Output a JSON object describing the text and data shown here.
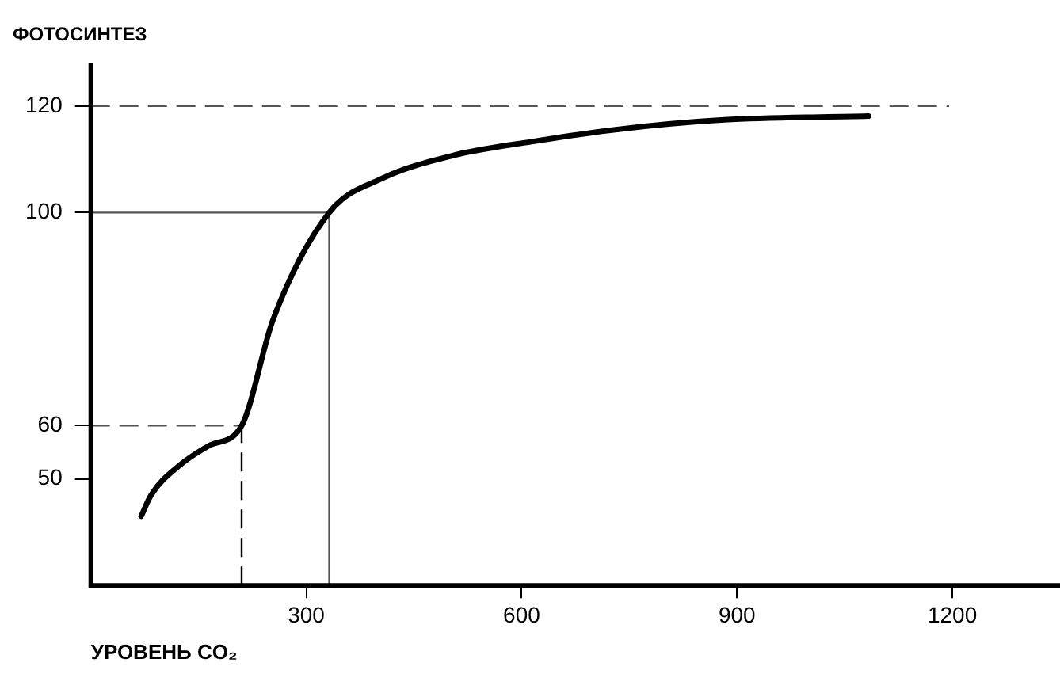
{
  "chart_data": {
    "type": "line",
    "ylabel": "ФОТОСИНТЕЗ",
    "xlabel": "УРОВЕНЬ CO₂",
    "series": [
      {
        "color": "#000000",
        "x": [
          70,
          84,
          124,
          164,
          210,
          254,
          332,
          404,
          504,
          614,
          733,
          882,
          1083
        ],
        "values": [
          43,
          47,
          52.6,
          56.2,
          60,
          80,
          100,
          106.3,
          110.7,
          113.3,
          115.6,
          117.4,
          118.1
        ]
      }
    ],
    "xlim": [
      0,
      1350
    ],
    "xticks": [
      300,
      600,
      900,
      1200
    ],
    "ylim": [
      30,
      128
    ],
    "yticks": [
      50,
      60,
      100,
      120
    ],
    "ref_lines": [
      {
        "axis": "y",
        "value": 120,
        "line_style": "dashed",
        "color": "#555555"
      },
      {
        "axis": "y",
        "value": 100,
        "line_style": "solid",
        "color": "#555555"
      },
      {
        "axis": "y",
        "value": 60,
        "line_style": "dashed",
        "color": "#555555"
      },
      {
        "axis": "x",
        "value": 210,
        "line_style": "dashed",
        "color": "#000000"
      },
      {
        "axis": "x",
        "value": 332,
        "line_style": "solid",
        "color": "#555555"
      }
    ],
    "grid": false,
    "legend": false,
    "marker": "none",
    "line_style": "solid"
  }
}
